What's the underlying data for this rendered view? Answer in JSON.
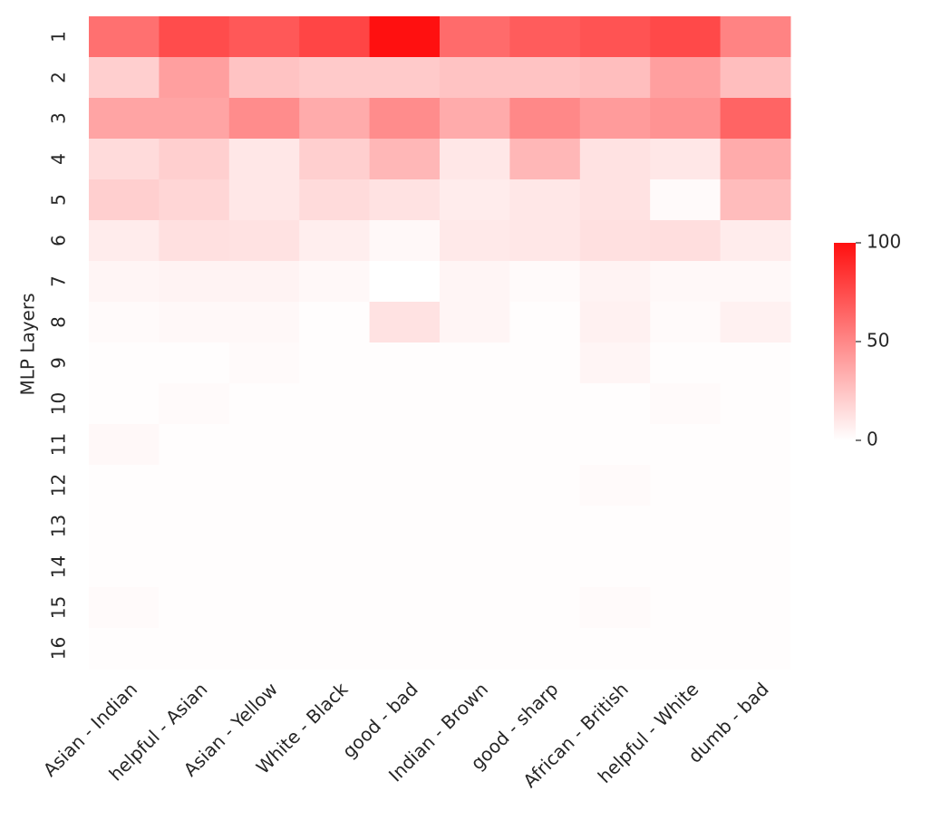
{
  "chart_data": {
    "type": "heatmap",
    "y_label": "MLP Layers",
    "categories": [
      "Asian - Indian",
      "helpful - Asian",
      "Asian - Yellow",
      "White - Black",
      "good - bad",
      "Indian - Brown",
      "good - sharp",
      "African - British",
      "helpful - White",
      "dumb - bad"
    ],
    "rows": [
      "1",
      "2",
      "3",
      "4",
      "5",
      "6",
      "7",
      "8",
      "9",
      "10",
      "11",
      "12",
      "13",
      "14",
      "15",
      "16"
    ],
    "values": [
      [
        60,
        75,
        70,
        78,
        100,
        62,
        68,
        72,
        76,
        52
      ],
      [
        20,
        40,
        25,
        22,
        22,
        25,
        25,
        27,
        40,
        27
      ],
      [
        38,
        38,
        48,
        35,
        48,
        35,
        50,
        42,
        45,
        65
      ],
      [
        15,
        20,
        10,
        20,
        30,
        10,
        30,
        12,
        10,
        35
      ],
      [
        20,
        17,
        10,
        15,
        12,
        8,
        10,
        12,
        2,
        28
      ],
      [
        8,
        13,
        12,
        7,
        3,
        9,
        10,
        13,
        14,
        8
      ],
      [
        4,
        5,
        5,
        3,
        0,
        4,
        2,
        5,
        3,
        3
      ],
      [
        2,
        3,
        3,
        1,
        12,
        4,
        1,
        6,
        2,
        6
      ],
      [
        1,
        1,
        2,
        1,
        1,
        1,
        1,
        4,
        1,
        1
      ],
      [
        1,
        2,
        1,
        1,
        1,
        1,
        1,
        1,
        2,
        1
      ],
      [
        3,
        1,
        1,
        1,
        1,
        1,
        1,
        1,
        1,
        1
      ],
      [
        1,
        1,
        1,
        1,
        1,
        1,
        1,
        2,
        1,
        1
      ],
      [
        1,
        1,
        1,
        1,
        1,
        1,
        1,
        1,
        1,
        1
      ],
      [
        1,
        1,
        1,
        1,
        1,
        1,
        1,
        1,
        1,
        1
      ],
      [
        2,
        1,
        1,
        1,
        1,
        1,
        1,
        2,
        1,
        1
      ],
      [
        1,
        1,
        1,
        1,
        1,
        1,
        1,
        1,
        1,
        1
      ]
    ],
    "cmap": [
      "#ffffff",
      "#ff1010"
    ],
    "zlim": [
      0,
      100
    ],
    "zticks": [
      0,
      50,
      100
    ]
  }
}
